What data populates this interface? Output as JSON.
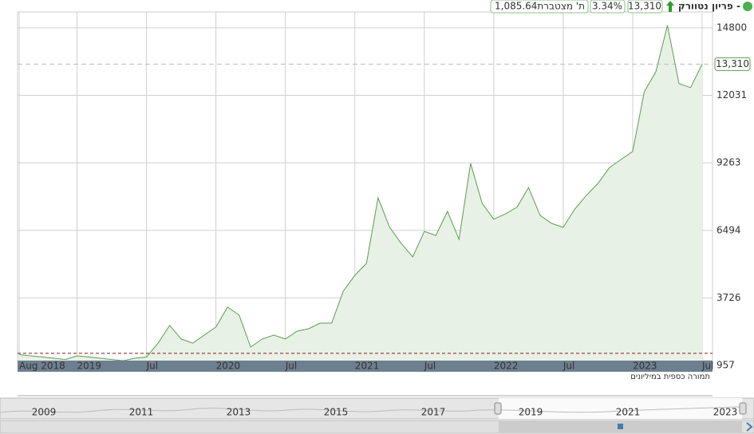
{
  "header": {
    "title": "פריון נטוורק -",
    "last": "13,310",
    "change": "3.34%",
    "turnover": "1,085.64",
    "turnover_label": "ת' מצטברת"
  },
  "chart_data": {
    "type": "line",
    "x": [
      "2018-08",
      "2018-09",
      "2018-10",
      "2018-11",
      "2018-12",
      "2019-01",
      "2019-02",
      "2019-03",
      "2019-04",
      "2019-05",
      "2019-06",
      "2019-07",
      "2019-08",
      "2019-09",
      "2019-10",
      "2019-11",
      "2019-12",
      "2020-01",
      "2020-02",
      "2020-03",
      "2020-04",
      "2020-05",
      "2020-06",
      "2020-07",
      "2020-08",
      "2020-09",
      "2020-10",
      "2020-11",
      "2020-12",
      "2021-01",
      "2021-02",
      "2021-03",
      "2021-04",
      "2021-05",
      "2021-06",
      "2021-07",
      "2021-08",
      "2021-09",
      "2021-10",
      "2021-11",
      "2021-12",
      "2022-01",
      "2022-02",
      "2022-03",
      "2022-04",
      "2022-05",
      "2022-06",
      "2022-07",
      "2022-08",
      "2022-09",
      "2022-10",
      "2022-11",
      "2022-12",
      "2023-01",
      "2023-02",
      "2023-03",
      "2023-04",
      "2023-05",
      "2023-06",
      "2023-07"
    ],
    "series": [
      {
        "color": "#5a9e4e",
        "values": [
          1400,
          1350,
          1300,
          1250,
          1200,
          1350,
          1300,
          1250,
          1200,
          1150,
          1250,
          1300,
          1870,
          2600,
          2040,
          1870,
          2200,
          2530,
          3350,
          3020,
          1710,
          2040,
          2200,
          2040,
          2360,
          2460,
          2690,
          2690,
          4000,
          4650,
          5140,
          7830,
          6620,
          5960,
          5410,
          6450,
          6290,
          7270,
          6130,
          9240,
          7600,
          6950,
          7170,
          7440,
          8250,
          7110,
          6780,
          6620,
          7370,
          7930,
          8420,
          9070,
          9400,
          9730,
          12180,
          13000,
          14900,
          12510,
          12350,
          13310
        ]
      }
    ],
    "ylim": [
      957,
      15450
    ],
    "yticks": [
      957,
      3726,
      6494,
      9263,
      12031,
      14800
    ],
    "xticks": [
      {
        "value": "2018-08",
        "label": "Aug 2018"
      },
      {
        "value": "2019-01",
        "label": "2019"
      },
      {
        "value": "2019-07",
        "label": "Jul"
      },
      {
        "value": "2020-01",
        "label": "2020"
      },
      {
        "value": "2020-07",
        "label": "Jul"
      },
      {
        "value": "2021-01",
        "label": "2021"
      },
      {
        "value": "2021-07",
        "label": "Jul"
      },
      {
        "value": "2022-01",
        "label": "2022"
      },
      {
        "value": "2022-07",
        "label": "Jul"
      },
      {
        "value": "2023-01",
        "label": "2023"
      },
      {
        "value": "2023-07",
        "label": "Jul"
      }
    ],
    "reference_line": 1450,
    "grid": true
  },
  "volume_label": "תמורה כספית במיליונים",
  "navigator": {
    "years": [
      "2009",
      "2011",
      "2013",
      "2015",
      "2017",
      "2019",
      "2021",
      "2023"
    ]
  }
}
